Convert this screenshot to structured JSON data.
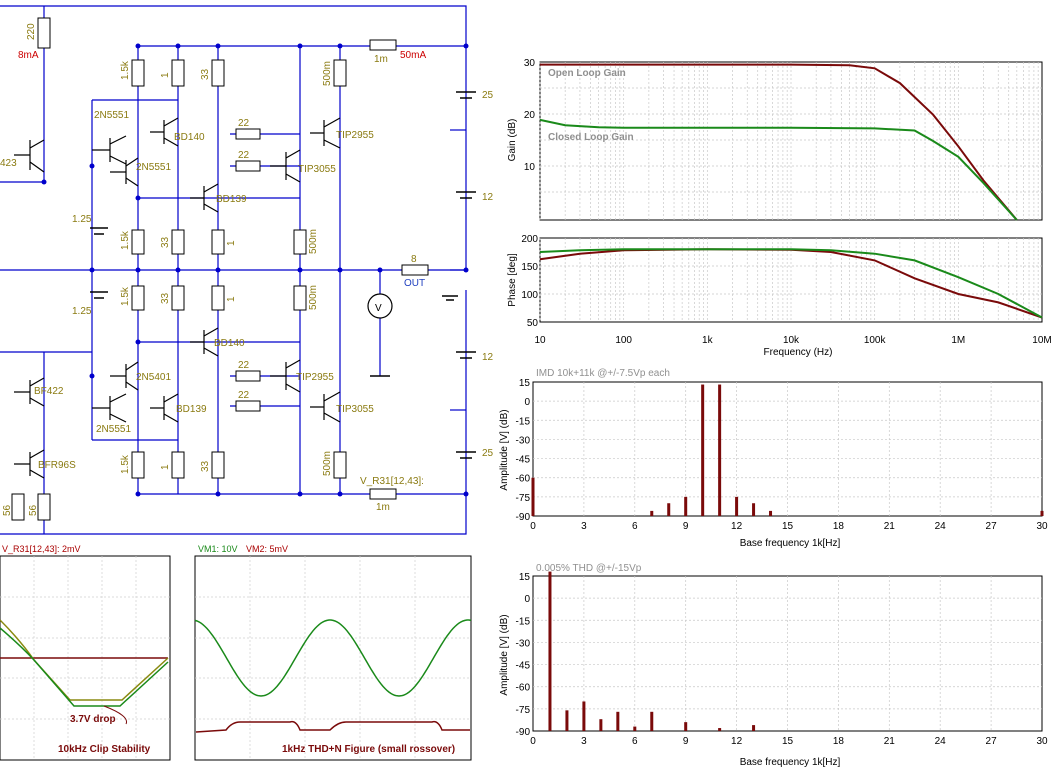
{
  "schematic": {
    "top_res": {
      "value": "220",
      "current": "8mA"
    },
    "top_right_res": {
      "value": "1m",
      "current": "50mA"
    },
    "labels": [
      {
        "id": "r1k5a",
        "text": "1.5k"
      },
      {
        "id": "r1a",
        "text": "1"
      },
      {
        "id": "r33a",
        "text": "33"
      },
      {
        "id": "r500ma",
        "text": "500m"
      },
      {
        "id": "q2n5551a",
        "text": "2N5551"
      },
      {
        "id": "qbd140a",
        "text": "BD140"
      },
      {
        "id": "r22a",
        "text": "22"
      },
      {
        "id": "qtip2955a",
        "text": "TIP2955"
      },
      {
        "id": "q423",
        "text": "423"
      },
      {
        "id": "q2n5551b",
        "text": "2N5551"
      },
      {
        "id": "r22b",
        "text": "22"
      },
      {
        "id": "qtip3055a",
        "text": "TIP3055"
      },
      {
        "id": "qbd139a",
        "text": "BD139"
      },
      {
        "id": "bat125a",
        "text": "1.25"
      },
      {
        "id": "r1k5b",
        "text": "1.5k"
      },
      {
        "id": "r33b",
        "text": "33"
      },
      {
        "id": "r1b",
        "text": "1"
      },
      {
        "id": "r500mb",
        "text": "500m"
      },
      {
        "id": "rout",
        "text": "8"
      },
      {
        "id": "outlbl",
        "text": "OUT"
      },
      {
        "id": "r1k5c",
        "text": "1.5k"
      },
      {
        "id": "r33c",
        "text": "33"
      },
      {
        "id": "r1c",
        "text": "1"
      },
      {
        "id": "r500mc",
        "text": "500m"
      },
      {
        "id": "bat125b",
        "text": "1.25"
      },
      {
        "id": "qbd140b",
        "text": "BD140"
      },
      {
        "id": "qbf422",
        "text": "BF422"
      },
      {
        "id": "q2n5401",
        "text": "2N5401"
      },
      {
        "id": "r22c",
        "text": "22"
      },
      {
        "id": "qtip2955b",
        "text": "TIP2955"
      },
      {
        "id": "qbd139b",
        "text": "BD139"
      },
      {
        "id": "r22d",
        "text": "22"
      },
      {
        "id": "qtip3055b",
        "text": "TIP3055"
      },
      {
        "id": "q2n5551c",
        "text": "2N5551"
      },
      {
        "id": "qbfr96s",
        "text": "BFR96S"
      },
      {
        "id": "r1k5d",
        "text": "1.5k"
      },
      {
        "id": "r1d",
        "text": "1"
      },
      {
        "id": "r33d",
        "text": "33"
      },
      {
        "id": "r500md",
        "text": "500m"
      },
      {
        "id": "vr31",
        "text": "V_R31[12,43]:"
      },
      {
        "id": "r1mb",
        "text": "1m"
      },
      {
        "id": "r56a",
        "text": "56"
      },
      {
        "id": "r56b",
        "text": "56"
      }
    ],
    "supplies": [
      {
        "id": "v25a",
        "text": "25"
      },
      {
        "id": "v12a",
        "text": "12"
      },
      {
        "id": "v12b",
        "text": "12"
      },
      {
        "id": "v25b",
        "text": "25"
      }
    ]
  },
  "open_closed_chart": {
    "ylabel": "Gain (dB)",
    "yticks": [
      "30",
      "20",
      "10"
    ],
    "series_open": "Open Loop Gain",
    "series_closed": "Closed Loop Gain"
  },
  "phase_chart": {
    "ylabel": "Phase [deg]",
    "yticks": [
      "200",
      "150",
      "100",
      "50"
    ],
    "xlabel": "Frequency (Hz)",
    "xticks": [
      "10",
      "100",
      "1k",
      "10k",
      "100k",
      "1M",
      "10M"
    ]
  },
  "scope_left": {
    "header": "V_R31[12,43]: 2mV",
    "caption": "10kHz Clip Stability",
    "note": "3.7V drop"
  },
  "scope_right": {
    "header_vm1": "VM1: 10V",
    "header_vm2": "VM2: 5mV",
    "caption": "1kHz THD+N Figure (small rossover)"
  },
  "chart_data": [
    {
      "type": "line",
      "title": "",
      "ylabel": "Gain (dB)",
      "xscale": "log",
      "ylim": [
        0,
        30
      ],
      "xlim": [
        10,
        10000000
      ],
      "series": [
        {
          "name": "Open Loop Gain",
          "x": [
            10,
            100,
            1000,
            10000,
            50000,
            100000,
            200000,
            500000,
            1000000,
            2000000,
            5000000
          ],
          "y": [
            29.5,
            29.5,
            29.5,
            29.5,
            29.4,
            28.8,
            26,
            20,
            14,
            7.5,
            0
          ]
        },
        {
          "name": "Closed Loop Gain",
          "x": [
            10,
            20,
            50,
            100,
            1000,
            10000,
            100000,
            300000,
            500000,
            1000000,
            2000000,
            5000000
          ],
          "y": [
            19,
            18,
            17.6,
            17.5,
            17.5,
            17.5,
            17.4,
            17,
            15,
            12,
            7,
            0
          ]
        }
      ]
    },
    {
      "type": "line",
      "title": "",
      "xlabel": "Frequency (Hz)",
      "ylabel": "Phase [deg]",
      "xscale": "log",
      "ylim": [
        50,
        200
      ],
      "xlim": [
        10,
        10000000
      ],
      "series": [
        {
          "x": [
            10,
            30,
            100,
            1000,
            10000,
            30000,
            100000,
            300000,
            1000000,
            3000000,
            10000000
          ],
          "y": [
            162,
            172,
            178,
            180,
            179,
            175,
            160,
            128,
            100,
            85,
            58
          ]
        },
        {
          "x": [
            10,
            30,
            100,
            1000,
            10000,
            30000,
            100000,
            300000,
            1000000,
            3000000,
            10000000
          ],
          "y": [
            175,
            178,
            180,
            180,
            180,
            178,
            172,
            160,
            130,
            100,
            58
          ]
        }
      ]
    },
    {
      "type": "bar",
      "title": "IMD 10k+11k @+/-7.5Vp each",
      "xlabel": "Base frequency 1k[Hz]",
      "ylabel": "Amplitude [V] (dB)",
      "ylim": [
        -90,
        15
      ],
      "xlim": [
        0,
        30
      ],
      "xticks": [
        "0",
        "3",
        "6",
        "9",
        "12",
        "15",
        "18",
        "21",
        "24",
        "27",
        "30"
      ],
      "yticks": [
        "15",
        "0",
        "-15",
        "-30",
        "-45",
        "-60",
        "-75",
        "-90"
      ],
      "x": [
        0,
        7,
        8,
        9,
        10,
        11,
        12,
        13,
        14,
        30
      ],
      "values": [
        -60,
        -86,
        -80,
        -75,
        13,
        13,
        -75,
        -80,
        -86,
        -86
      ]
    },
    {
      "type": "bar",
      "title": "0.005% THD @+/-15Vp",
      "xlabel": "Base frequency 1k[Hz]",
      "ylabel": "Amplitude [V] (dB)",
      "ylim": [
        -90,
        15
      ],
      "xlim": [
        0,
        30
      ],
      "xticks": [
        "0",
        "3",
        "6",
        "9",
        "12",
        "15",
        "18",
        "21",
        "24",
        "27",
        "30"
      ],
      "yticks": [
        "15",
        "0",
        "-15",
        "-30",
        "-45",
        "-60",
        "-75",
        "-90"
      ],
      "x": [
        1,
        2,
        3,
        4,
        5,
        6,
        7,
        9,
        11,
        13
      ],
      "values": [
        18,
        -76,
        -70,
        -82,
        -77,
        -87,
        -77,
        -84,
        -88,
        -86
      ]
    }
  ]
}
